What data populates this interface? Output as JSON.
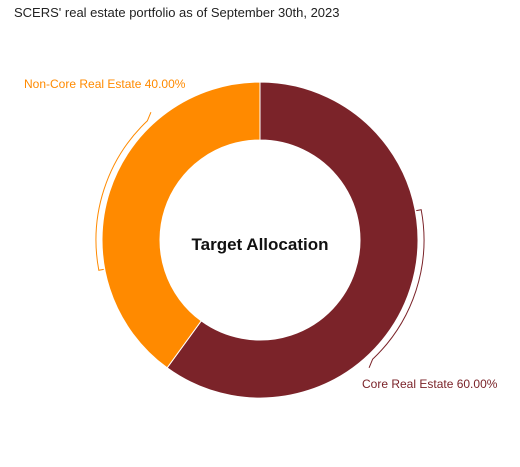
{
  "chart_data": {
    "type": "pie",
    "variant": "donut",
    "title": "SCERS' real estate portfolio as of September 30th, 2023",
    "center_label": "Target Allocation",
    "slices": [
      {
        "label": "Core Real Estate",
        "value": 60.0,
        "value_label": "60.00%",
        "color": "#7b2329"
      },
      {
        "label": "Non-Core Real Estate",
        "value": 40.0,
        "value_label": "40.00%",
        "color": "#ff8a00"
      }
    ],
    "legend": "none",
    "data_labels": "outside"
  }
}
